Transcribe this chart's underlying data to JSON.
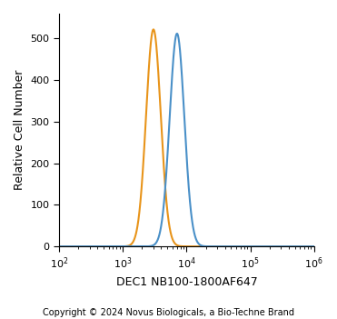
{
  "title": "",
  "xlabel": "DEC1 NB100-1800AF647",
  "ylabel": "Relative Cell Number",
  "copyright": "Copyright © 2024 Novus Biologicals, a Bio-Techne Brand",
  "xlim_log": [
    2,
    6
  ],
  "ylim": [
    0,
    560
  ],
  "yticks": [
    0,
    100,
    200,
    300,
    400,
    500
  ],
  "orange_color": "#E8941A",
  "blue_color": "#4A90C8",
  "orange_peak_log": 3.48,
  "orange_peak_height": 522,
  "orange_sigma_log": 0.115,
  "blue_peak_log": 3.85,
  "blue_peak_height": 512,
  "blue_sigma_log": 0.115,
  "background_color": "#ffffff",
  "linewidth": 1.5,
  "xlabel_fontsize": 9,
  "ylabel_fontsize": 9,
  "copyright_fontsize": 7,
  "tick_fontsize": 8
}
